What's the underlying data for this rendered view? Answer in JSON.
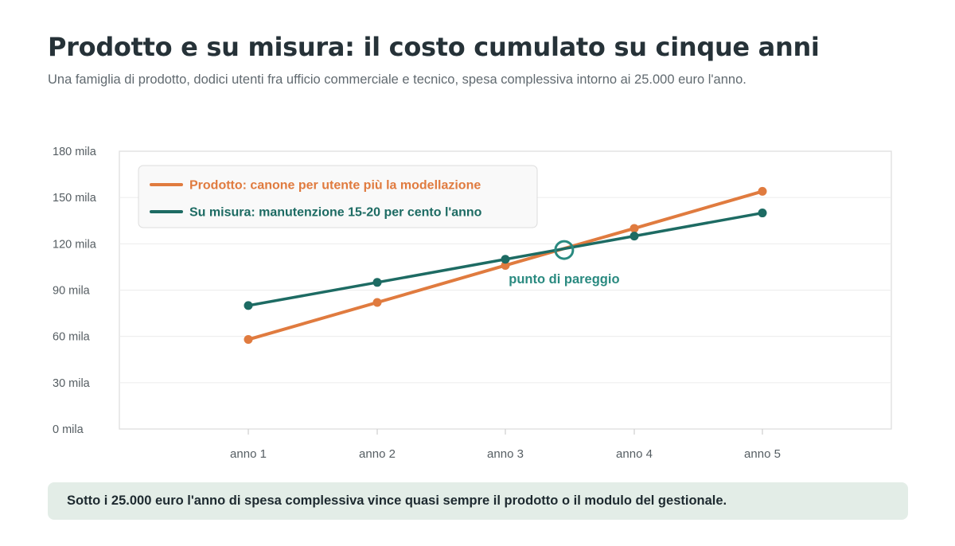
{
  "title": "Prodotto e su misura: il costo cumulato su cinque anni",
  "subtitle": "Una famiglia di prodotto, dodici utenti fra ufficio commerciale e tecnico, spesa complessiva intorno ai 25.000 euro l'anno.",
  "footer": "Sotto i 25.000 euro l'anno di spesa complessiva vince quasi sempre il prodotto o il modulo del gestionale.",
  "colors": {
    "product": "#e07b3f",
    "custom": "#1d6b63",
    "annotation": "#2a8a80"
  },
  "chart_data": {
    "type": "line",
    "categories": [
      "anno 1",
      "anno 2",
      "anno 3",
      "anno 4",
      "anno 5"
    ],
    "series": [
      {
        "name": "Prodotto: canone per utente più la modellazione",
        "values": [
          58,
          82,
          106,
          130,
          154
        ]
      },
      {
        "name": "Su misura: manutenzione 15-20 per cento l'anno",
        "values": [
          80,
          95,
          110,
          125,
          140
        ]
      }
    ],
    "yticks": [
      "0 mila",
      "30 mila",
      "60 mila",
      "90 mila",
      "120 mila",
      "150 mila",
      "180 mila"
    ],
    "ylim": [
      0,
      180
    ],
    "grid": true,
    "legend": "top-left",
    "annotation": {
      "label": "punto di pareggio",
      "x": 3.45,
      "y": 116
    }
  }
}
